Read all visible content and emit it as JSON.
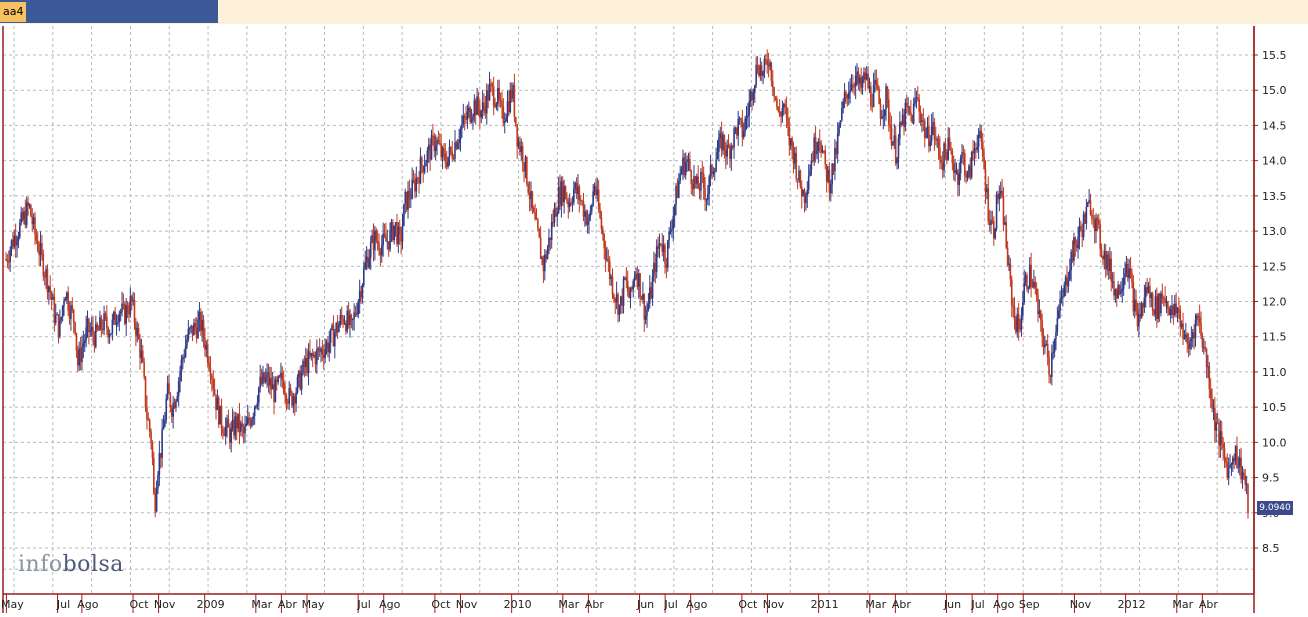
{
  "tab": {
    "label": "aa4"
  },
  "watermark": {
    "info": "info",
    "bolsa": "bolsa"
  },
  "last_price_label": "9.0940",
  "colors": {
    "up": "#2f3a86",
    "down": "#c0391c",
    "grid": "#b9b9b9",
    "axis": "#9b1c1c",
    "background": "#ffffff"
  },
  "chart_data": {
    "type": "candlestick",
    "title": "",
    "xlabel": "",
    "ylabel": "",
    "ylim": [
      8.1,
      15.8
    ],
    "y_ticks": [
      8.5,
      9.0,
      9.5,
      10.0,
      10.5,
      11.0,
      11.5,
      12.0,
      12.5,
      13.0,
      13.5,
      14.0,
      14.5,
      15.0,
      15.5
    ],
    "y_tick_labels": [
      "8.5",
      "9.0",
      "9.5",
      "10.0",
      "10.5",
      "11.0",
      "11.5",
      "12.0",
      "12.5",
      "13.0",
      "13.5",
      "14.0",
      "14.5",
      "15.0",
      "15.5"
    ],
    "x_labels": [
      {
        "label": "May",
        "t": 0.25
      },
      {
        "label": "Jul",
        "t": 2.25
      },
      {
        "label": "Ago",
        "t": 3.2
      },
      {
        "label": "Oct",
        "t": 5.2
      },
      {
        "label": "Nov",
        "t": 6.2
      },
      {
        "label": "2009",
        "t": 8.0
      },
      {
        "label": "Mar",
        "t": 10.0
      },
      {
        "label": "Abr",
        "t": 11.0
      },
      {
        "label": "May",
        "t": 12.0
      },
      {
        "label": "Jul",
        "t": 14.0
      },
      {
        "label": "Ago",
        "t": 15.0
      },
      {
        "label": "Oct",
        "t": 17.0
      },
      {
        "label": "Nov",
        "t": 18.0
      },
      {
        "label": "2010",
        "t": 20.0
      },
      {
        "label": "Mar",
        "t": 22.0
      },
      {
        "label": "Abr",
        "t": 23.0
      },
      {
        "label": "Jun",
        "t": 25.0
      },
      {
        "label": "Jul",
        "t": 26.0
      },
      {
        "label": "Ago",
        "t": 27.0
      },
      {
        "label": "Oct",
        "t": 29.0
      },
      {
        "label": "Nov",
        "t": 30.0
      },
      {
        "label": "2011",
        "t": 32.0
      },
      {
        "label": "Mar",
        "t": 34.0
      },
      {
        "label": "Abr",
        "t": 35.0
      },
      {
        "label": "Jun",
        "t": 37.0
      },
      {
        "label": "Jul",
        "t": 38.0
      },
      {
        "label": "Ago",
        "t": 39.0
      },
      {
        "label": "Sep",
        "t": 40.0
      },
      {
        "label": "Nov",
        "t": 42.0
      },
      {
        "label": "2012",
        "t": 44.0
      },
      {
        "label": "Mar",
        "t": 46.0
      },
      {
        "label": "Abr",
        "t": 47.0
      }
    ],
    "series": [
      {
        "values": [
          [
            0.0,
            12.6
          ],
          [
            0.3,
            12.9
          ],
          [
            0.6,
            13.1
          ],
          [
            0.9,
            13.35
          ],
          [
            1.1,
            13.0
          ],
          [
            1.4,
            12.6
          ],
          [
            1.7,
            12.2
          ],
          [
            1.9,
            11.8
          ],
          [
            2.1,
            11.6
          ],
          [
            2.3,
            12.2
          ],
          [
            2.5,
            11.9
          ],
          [
            2.7,
            11.7
          ],
          [
            2.8,
            11.1
          ],
          [
            3.0,
            11.4
          ],
          [
            3.2,
            11.6
          ],
          [
            3.5,
            11.5
          ],
          [
            3.8,
            11.7
          ],
          [
            4.1,
            11.6
          ],
          [
            4.4,
            11.9
          ],
          [
            4.6,
            11.8
          ],
          [
            4.9,
            12.0
          ],
          [
            5.1,
            11.6
          ],
          [
            5.3,
            11.2
          ],
          [
            5.5,
            10.4
          ],
          [
            5.7,
            10.0
          ],
          [
            5.8,
            9.0
          ],
          [
            5.9,
            9.6
          ],
          [
            6.1,
            10.0
          ],
          [
            6.3,
            10.7
          ],
          [
            6.5,
            10.5
          ],
          [
            6.7,
            10.8
          ],
          [
            6.9,
            11.2
          ],
          [
            7.1,
            11.5
          ],
          [
            7.3,
            11.6
          ],
          [
            7.6,
            11.7
          ],
          [
            7.8,
            11.4
          ],
          [
            8.0,
            11.1
          ],
          [
            8.2,
            10.6
          ],
          [
            8.4,
            10.3
          ],
          [
            8.6,
            10.2
          ],
          [
            8.8,
            10.1
          ],
          [
            9.0,
            10.3
          ],
          [
            9.3,
            10.1
          ],
          [
            9.6,
            10.4
          ],
          [
            9.9,
            10.8
          ],
          [
            10.2,
            10.9
          ],
          [
            10.5,
            10.7
          ],
          [
            10.8,
            10.9
          ],
          [
            11.1,
            10.6
          ],
          [
            11.4,
            10.8
          ],
          [
            11.7,
            11.1
          ],
          [
            12.0,
            11.2
          ],
          [
            12.3,
            11.3
          ],
          [
            12.6,
            11.4
          ],
          [
            12.9,
            11.6
          ],
          [
            13.2,
            11.8
          ],
          [
            13.5,
            11.6
          ],
          [
            13.8,
            12.1
          ],
          [
            14.1,
            12.6
          ],
          [
            14.4,
            12.9
          ],
          [
            14.7,
            12.8
          ],
          [
            15.0,
            12.9
          ],
          [
            15.2,
            13.1
          ],
          [
            15.4,
            12.8
          ],
          [
            15.6,
            13.4
          ],
          [
            15.9,
            13.6
          ],
          [
            16.2,
            13.9
          ],
          [
            16.5,
            14.1
          ],
          [
            16.8,
            14.3
          ],
          [
            17.1,
            14.0
          ],
          [
            17.4,
            14.1
          ],
          [
            17.7,
            14.4
          ],
          [
            18.0,
            14.6
          ],
          [
            18.3,
            14.8
          ],
          [
            18.6,
            14.7
          ],
          [
            18.9,
            15.0
          ],
          [
            19.2,
            14.9
          ],
          [
            19.4,
            14.6
          ],
          [
            19.6,
            14.8
          ],
          [
            19.8,
            15.0
          ],
          [
            20.0,
            14.3
          ],
          [
            20.2,
            14.1
          ],
          [
            20.4,
            13.7
          ],
          [
            20.6,
            13.2
          ],
          [
            20.8,
            12.9
          ],
          [
            21.0,
            12.5
          ],
          [
            21.2,
            12.8
          ],
          [
            21.4,
            13.2
          ],
          [
            21.6,
            13.5
          ],
          [
            21.8,
            13.6
          ],
          [
            22.0,
            13.4
          ],
          [
            22.2,
            13.6
          ],
          [
            22.4,
            13.5
          ],
          [
            22.6,
            13.3
          ],
          [
            22.8,
            13.1
          ],
          [
            23.0,
            13.7
          ],
          [
            23.2,
            13.2
          ],
          [
            23.4,
            12.8
          ],
          [
            23.6,
            12.4
          ],
          [
            23.8,
            12.1
          ],
          [
            24.0,
            11.9
          ],
          [
            24.2,
            12.3
          ],
          [
            24.4,
            12.0
          ],
          [
            24.6,
            12.5
          ],
          [
            24.8,
            12.2
          ],
          [
            25.0,
            11.8
          ],
          [
            25.2,
            12.1
          ],
          [
            25.4,
            12.6
          ],
          [
            25.6,
            12.9
          ],
          [
            25.8,
            12.6
          ],
          [
            26.0,
            13.1
          ],
          [
            26.2,
            13.5
          ],
          [
            26.4,
            13.9
          ],
          [
            26.6,
            14.0
          ],
          [
            26.8,
            13.8
          ],
          [
            27.0,
            13.6
          ],
          [
            27.2,
            13.7
          ],
          [
            27.4,
            13.5
          ],
          [
            27.6,
            13.9
          ],
          [
            27.8,
            14.1
          ],
          [
            28.0,
            14.3
          ],
          [
            28.2,
            14.1
          ],
          [
            28.4,
            14.3
          ],
          [
            28.6,
            14.5
          ],
          [
            28.8,
            14.4
          ],
          [
            29.0,
            14.7
          ],
          [
            29.2,
            15.1
          ],
          [
            29.4,
            15.4
          ],
          [
            29.6,
            15.2
          ],
          [
            29.8,
            15.5
          ],
          [
            30.0,
            15.1
          ],
          [
            30.2,
            14.6
          ],
          [
            30.4,
            14.8
          ],
          [
            30.6,
            14.3
          ],
          [
            30.8,
            14.1
          ],
          [
            31.0,
            13.7
          ],
          [
            31.2,
            13.5
          ],
          [
            31.4,
            13.9
          ],
          [
            31.6,
            14.2
          ],
          [
            31.8,
            14.4
          ],
          [
            32.0,
            13.9
          ],
          [
            32.2,
            13.7
          ],
          [
            32.4,
            14.0
          ],
          [
            32.6,
            14.5
          ],
          [
            32.8,
            14.9
          ],
          [
            33.0,
            15.1
          ],
          [
            33.2,
            15.2
          ],
          [
            33.4,
            15.0
          ],
          [
            33.6,
            15.2
          ],
          [
            33.8,
            14.9
          ],
          [
            34.0,
            15.0
          ],
          [
            34.2,
            14.7
          ],
          [
            34.4,
            14.9
          ],
          [
            34.6,
            14.4
          ],
          [
            34.8,
            14.1
          ],
          [
            35.0,
            14.5
          ],
          [
            35.2,
            14.7
          ],
          [
            35.4,
            14.6
          ],
          [
            35.6,
            14.9
          ],
          [
            35.8,
            14.6
          ],
          [
            36.0,
            14.3
          ],
          [
            36.2,
            14.5
          ],
          [
            36.4,
            14.2
          ],
          [
            36.6,
            14.0
          ],
          [
            36.8,
            14.2
          ],
          [
            37.0,
            14.0
          ],
          [
            37.2,
            13.8
          ],
          [
            37.4,
            14.1
          ],
          [
            37.6,
            13.7
          ],
          [
            37.8,
            14.1
          ],
          [
            38.0,
            14.4
          ],
          [
            38.2,
            14.0
          ],
          [
            38.4,
            13.3
          ],
          [
            38.6,
            13.0
          ],
          [
            38.8,
            13.6
          ],
          [
            39.0,
            13.2
          ],
          [
            39.2,
            12.4
          ],
          [
            39.4,
            11.8
          ],
          [
            39.6,
            11.6
          ],
          [
            39.8,
            12.2
          ],
          [
            40.0,
            12.4
          ],
          [
            40.2,
            12.2
          ],
          [
            40.4,
            11.7
          ],
          [
            40.6,
            11.4
          ],
          [
            40.8,
            11.0
          ],
          [
            41.0,
            11.6
          ],
          [
            41.2,
            11.9
          ],
          [
            41.4,
            12.2
          ],
          [
            41.6,
            12.6
          ],
          [
            41.8,
            12.8
          ],
          [
            42.0,
            13.0
          ],
          [
            42.2,
            13.2
          ],
          [
            42.4,
            13.4
          ],
          [
            42.6,
            13.1
          ],
          [
            42.8,
            12.8
          ],
          [
            43.0,
            12.6
          ],
          [
            43.2,
            12.4
          ],
          [
            43.4,
            12.1
          ],
          [
            43.6,
            12.3
          ],
          [
            43.8,
            12.6
          ],
          [
            44.0,
            12.2
          ],
          [
            44.2,
            11.7
          ],
          [
            44.4,
            11.9
          ],
          [
            44.6,
            12.2
          ],
          [
            44.8,
            12.0
          ],
          [
            45.0,
            11.9
          ],
          [
            45.2,
            12.1
          ],
          [
            45.4,
            12.0
          ],
          [
            45.6,
            11.8
          ],
          [
            45.8,
            11.9
          ],
          [
            46.0,
            11.6
          ],
          [
            46.2,
            11.3
          ],
          [
            46.4,
            11.6
          ],
          [
            46.6,
            11.8
          ],
          [
            46.8,
            11.4
          ],
          [
            47.0,
            11.0
          ],
          [
            47.2,
            10.4
          ],
          [
            47.4,
            10.1
          ],
          [
            47.6,
            9.8
          ],
          [
            47.8,
            9.6
          ],
          [
            48.0,
            9.9
          ],
          [
            48.2,
            9.7
          ],
          [
            48.4,
            9.5
          ],
          [
            48.55,
            9.09
          ]
        ]
      }
    ],
    "legend": "none",
    "grid": true
  }
}
